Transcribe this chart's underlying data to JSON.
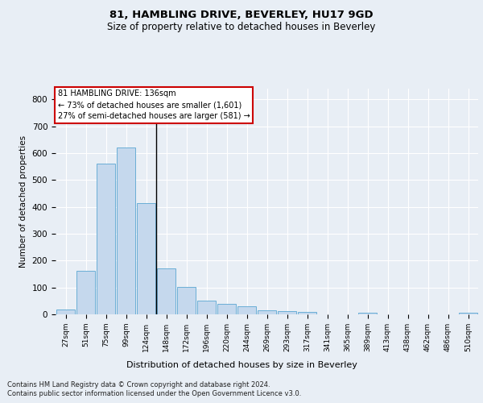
{
  "title1": "81, HAMBLING DRIVE, BEVERLEY, HU17 9GD",
  "title2": "Size of property relative to detached houses in Beverley",
  "xlabel": "Distribution of detached houses by size in Beverley",
  "ylabel": "Number of detached properties",
  "categories": [
    "27sqm",
    "51sqm",
    "75sqm",
    "99sqm",
    "124sqm",
    "148sqm",
    "172sqm",
    "196sqm",
    "220sqm",
    "244sqm",
    "269sqm",
    "293sqm",
    "317sqm",
    "341sqm",
    "365sqm",
    "389sqm",
    "413sqm",
    "438sqm",
    "462sqm",
    "486sqm",
    "510sqm"
  ],
  "values": [
    18,
    162,
    562,
    620,
    413,
    171,
    103,
    50,
    38,
    30,
    14,
    13,
    10,
    0,
    0,
    7,
    0,
    0,
    0,
    0,
    7
  ],
  "bar_color": "#c5d8ed",
  "bar_edge_color": "#6aaed6",
  "vline_x": 4.5,
  "vline_color": "#000000",
  "annotation_text": "81 HAMBLING DRIVE: 136sqm\n← 73% of detached houses are smaller (1,601)\n27% of semi-detached houses are larger (581) →",
  "annotation_box_color": "#ffffff",
  "annotation_box_edge": "#cc0000",
  "ylim": [
    0,
    840
  ],
  "yticks": [
    0,
    100,
    200,
    300,
    400,
    500,
    600,
    700,
    800
  ],
  "footer": "Contains HM Land Registry data © Crown copyright and database right 2024.\nContains public sector information licensed under the Open Government Licence v3.0.",
  "bg_color": "#e8eef5",
  "plot_bg_color": "#e8eef5",
  "grid_color": "#ffffff"
}
